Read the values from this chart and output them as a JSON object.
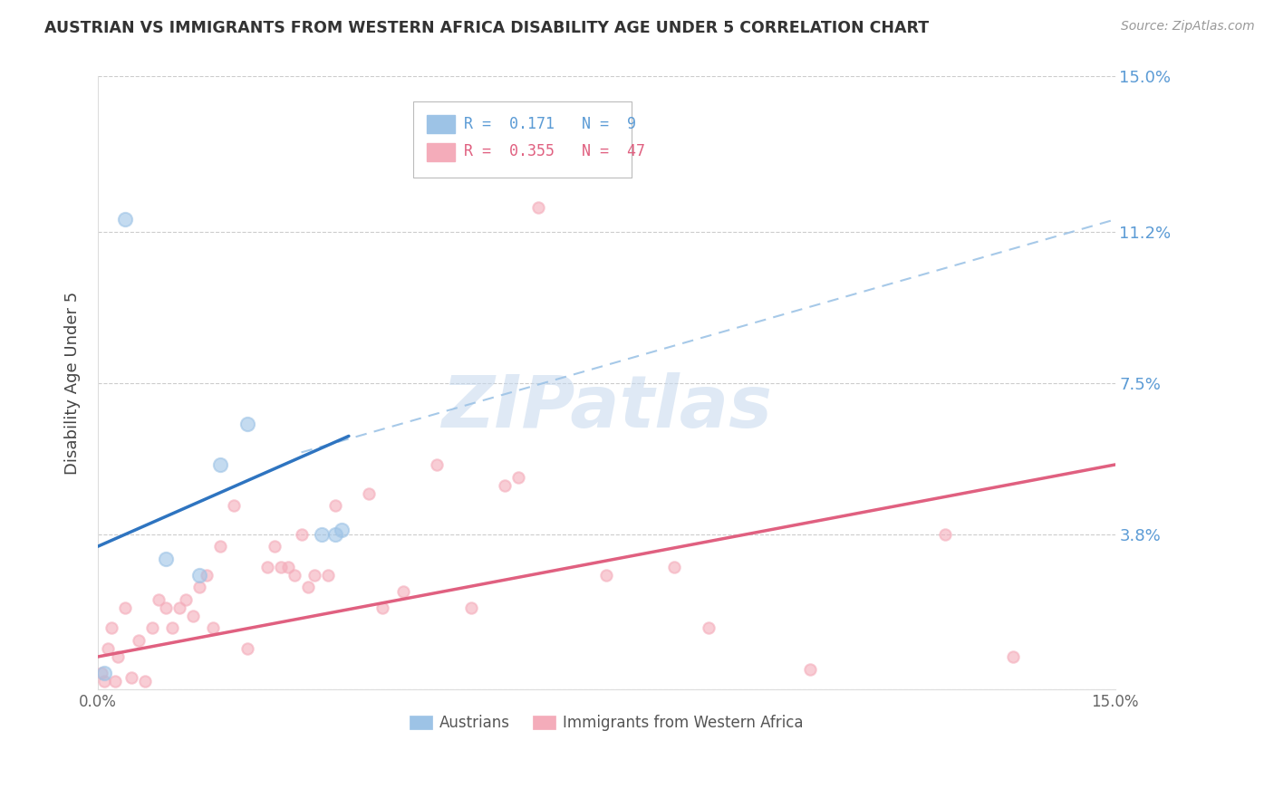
{
  "title": "AUSTRIAN VS IMMIGRANTS FROM WESTERN AFRICA DISABILITY AGE UNDER 5 CORRELATION CHART",
  "source": "Source: ZipAtlas.com",
  "ylabel": "Disability Age Under 5",
  "watermark": "ZIPatlas",
  "xmin": 0.0,
  "xmax": 15.0,
  "ymin": 0.0,
  "ymax": 15.0,
  "yticks": [
    0.0,
    3.8,
    7.5,
    11.2,
    15.0
  ],
  "ytick_labels_right": [
    "",
    "3.8%",
    "7.5%",
    "11.2%",
    "15.0%"
  ],
  "color_austrians": "#9DC3E6",
  "color_immigrants": "#F4ACBA",
  "color_blue_line": "#2E74C0",
  "color_pink_line": "#E06080",
  "color_dashed": "#9DC3E6",
  "legend_r_austrians": "0.171",
  "legend_n_austrians": "9",
  "legend_r_immigrants": "0.355",
  "legend_n_immigrants": "47",
  "legend_label_austrians": "Austrians",
  "legend_label_immigrants": "Immigrants from Western Africa",
  "austrians_x": [
    0.1,
    0.4,
    1.0,
    1.8,
    2.2,
    3.3,
    3.5,
    3.6,
    1.5
  ],
  "austrians_y": [
    0.4,
    11.5,
    3.2,
    5.5,
    6.5,
    3.8,
    3.8,
    3.9,
    2.8
  ],
  "immigrants_x": [
    0.05,
    0.1,
    0.15,
    0.2,
    0.25,
    0.3,
    0.4,
    0.5,
    0.6,
    0.7,
    0.8,
    0.9,
    1.0,
    1.1,
    1.2,
    1.3,
    1.4,
    1.5,
    1.6,
    1.7,
    1.8,
    2.0,
    2.2,
    2.5,
    2.6,
    2.7,
    2.8,
    2.9,
    3.0,
    3.1,
    3.2,
    3.4,
    3.5,
    4.0,
    4.2,
    4.5,
    5.0,
    5.5,
    6.0,
    6.2,
    6.5,
    7.5,
    8.5,
    9.0,
    10.5,
    12.5,
    13.5
  ],
  "immigrants_y": [
    0.4,
    0.2,
    1.0,
    1.5,
    0.2,
    0.8,
    2.0,
    0.3,
    1.2,
    0.2,
    1.5,
    2.2,
    2.0,
    1.5,
    2.0,
    2.2,
    1.8,
    2.5,
    2.8,
    1.5,
    3.5,
    4.5,
    1.0,
    3.0,
    3.5,
    3.0,
    3.0,
    2.8,
    3.8,
    2.5,
    2.8,
    2.8,
    4.5,
    4.8,
    2.0,
    2.4,
    5.5,
    2.0,
    5.0,
    5.2,
    11.8,
    2.8,
    3.0,
    1.5,
    0.5,
    3.8,
    0.8
  ],
  "aus_line_x0": 0.0,
  "aus_line_x1": 3.7,
  "aus_line_y0": 3.5,
  "aus_line_y1": 6.2,
  "dash_line_x0": 3.0,
  "dash_line_x1": 15.0,
  "dash_line_y0": 5.8,
  "dash_line_y1": 11.5,
  "imm_line_x0": 0.0,
  "imm_line_x1": 15.0,
  "imm_line_y0": 0.8,
  "imm_line_y1": 5.5
}
